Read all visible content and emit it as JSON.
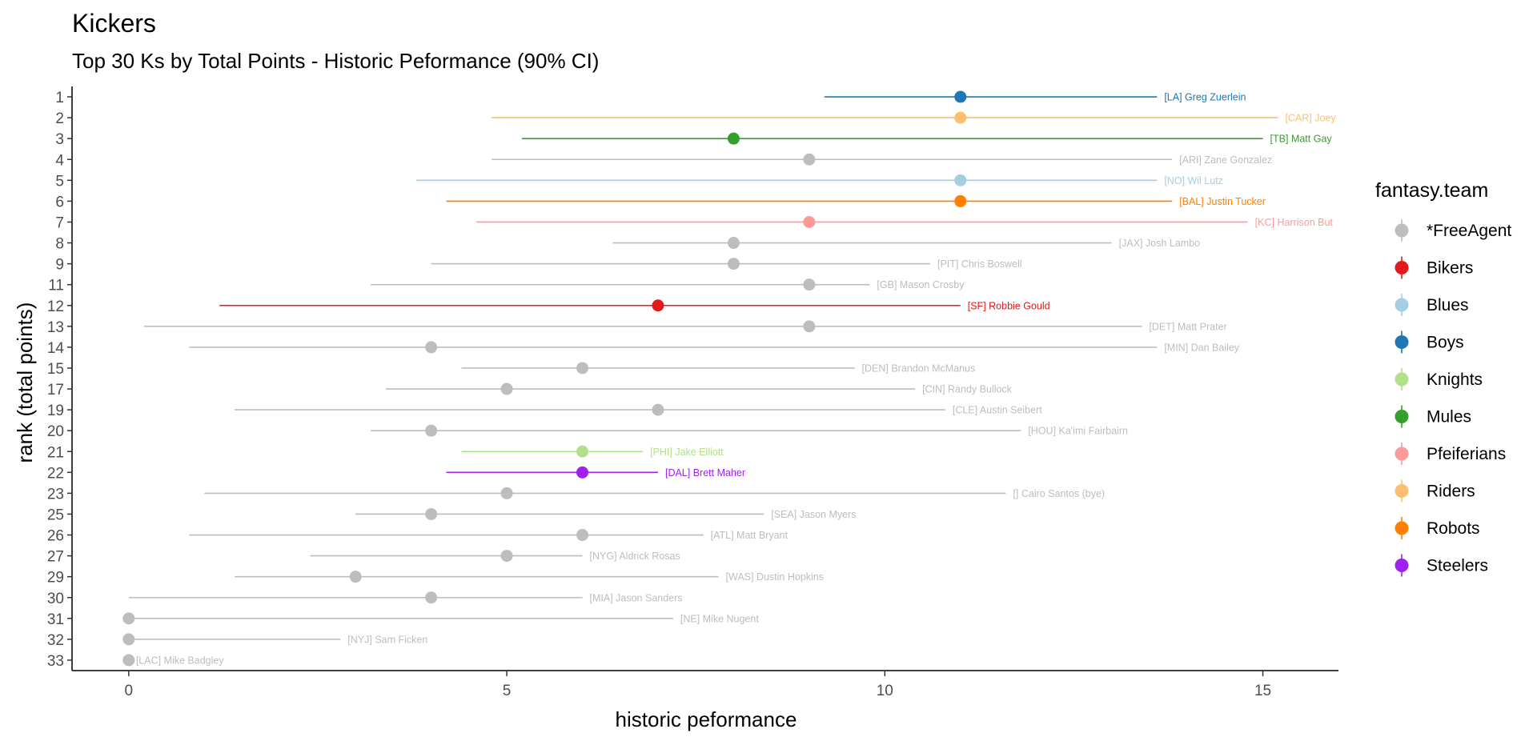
{
  "chart_data": {
    "type": "scatter",
    "title": "Kickers",
    "subtitle": "Top 30 Ks by Total Points - Historic Peformance (90% CI)",
    "xlabel": "historic peformance",
    "ylabel": "rank (total points)",
    "xlim": [
      -0.75,
      16.0
    ],
    "x_ticks": [
      0,
      5,
      10,
      15
    ],
    "y_ticks": [
      "1",
      "2",
      "3",
      "4",
      "5",
      "6",
      "7",
      "8",
      "9",
      "11",
      "12",
      "13",
      "14",
      "15",
      "17",
      "19",
      "20",
      "21",
      "22",
      "23",
      "25",
      "26",
      "27",
      "29",
      "30",
      "31",
      "32",
      "33"
    ],
    "grid": false,
    "legend": {
      "title": "fantasy.team",
      "position": "right",
      "entries": [
        {
          "name": "*FreeAgent",
          "color": "#BDBDBD"
        },
        {
          "name": "Bikers",
          "color": "#E31A1C"
        },
        {
          "name": "Blues",
          "color": "#A6CEE3"
        },
        {
          "name": "Boys",
          "color": "#1F78B4"
        },
        {
          "name": "Knights",
          "color": "#B2DF8A"
        },
        {
          "name": "Mules",
          "color": "#33A02C"
        },
        {
          "name": "Pfeiferians",
          "color": "#FB9A99"
        },
        {
          "name": "Riders",
          "color": "#FDBF6F"
        },
        {
          "name": "Robots",
          "color": "#FF7F00"
        },
        {
          "name": "Steelers",
          "color": "#A020F0"
        }
      ]
    },
    "points": [
      {
        "rank": "1",
        "label": "[LA] Greg Zuerlein",
        "team": "Boys",
        "x": 11,
        "low": 9.2,
        "high": 13.6
      },
      {
        "rank": "2",
        "label": "[CAR] Joey",
        "team": "Riders",
        "x": 11,
        "low": 4.8,
        "high": 15.2
      },
      {
        "rank": "3",
        "label": "[TB] Matt Gay",
        "team": "Mules",
        "x": 8,
        "low": 5.2,
        "high": 15.0
      },
      {
        "rank": "4",
        "label": "[ARI] Zane Gonzalez",
        "team": "*FreeAgent",
        "x": 9,
        "low": 4.8,
        "high": 13.8
      },
      {
        "rank": "5",
        "label": "[NO] Wil Lutz",
        "team": "Blues",
        "x": 11,
        "low": 3.8,
        "high": 13.6
      },
      {
        "rank": "6",
        "label": "[BAL] Justin Tucker",
        "team": "Robots",
        "x": 11,
        "low": 4.2,
        "high": 13.8
      },
      {
        "rank": "7",
        "label": "[KC] Harrison But",
        "team": "Pfeiferians",
        "x": 9,
        "low": 4.6,
        "high": 14.8
      },
      {
        "rank": "8",
        "label": "[JAX] Josh Lambo",
        "team": "*FreeAgent",
        "x": 8,
        "low": 6.4,
        "high": 13.0
      },
      {
        "rank": "9",
        "label": "[PIT] Chris Boswell",
        "team": "*FreeAgent",
        "x": 8,
        "low": 4.0,
        "high": 10.6
      },
      {
        "rank": "11",
        "label": "[GB] Mason Crosby",
        "team": "*FreeAgent",
        "x": 9,
        "low": 3.2,
        "high": 9.8
      },
      {
        "rank": "12",
        "label": "[SF] Robbie Gould",
        "team": "Bikers",
        "x": 7,
        "low": 1.2,
        "high": 11.0
      },
      {
        "rank": "13",
        "label": "[DET] Matt Prater",
        "team": "*FreeAgent",
        "x": 9,
        "low": 0.2,
        "high": 13.4
      },
      {
        "rank": "14",
        "label": "[MIN] Dan Bailey",
        "team": "*FreeAgent",
        "x": 4,
        "low": 0.8,
        "high": 13.6
      },
      {
        "rank": "15",
        "label": "[DEN] Brandon McManus",
        "team": "*FreeAgent",
        "x": 6,
        "low": 4.4,
        "high": 9.6
      },
      {
        "rank": "17",
        "label": "[CIN] Randy Bullock",
        "team": "*FreeAgent",
        "x": 5,
        "low": 3.4,
        "high": 10.4
      },
      {
        "rank": "19",
        "label": "[CLE] Austin Seibert",
        "team": "*FreeAgent",
        "x": 7,
        "low": 1.4,
        "high": 10.8
      },
      {
        "rank": "20",
        "label": "[HOU] Ka'imi Fairbairn",
        "team": "*FreeAgent",
        "x": 4,
        "low": 3.2,
        "high": 11.8
      },
      {
        "rank": "21",
        "label": "[PHI] Jake Elliott",
        "team": "Knights",
        "x": 6,
        "low": 4.4,
        "high": 6.8
      },
      {
        "rank": "22",
        "label": "[DAL] Brett Maher",
        "team": "Steelers",
        "x": 6,
        "low": 4.2,
        "high": 7.0
      },
      {
        "rank": "23",
        "label": "[] Cairo Santos (bye)",
        "team": "*FreeAgent",
        "x": 5,
        "low": 1.0,
        "high": 11.6
      },
      {
        "rank": "25",
        "label": "[SEA] Jason Myers",
        "team": "*FreeAgent",
        "x": 4,
        "low": 3.0,
        "high": 8.4
      },
      {
        "rank": "26",
        "label": "[ATL] Matt Bryant",
        "team": "*FreeAgent",
        "x": 6,
        "low": 0.8,
        "high": 7.6
      },
      {
        "rank": "27",
        "label": "[NYG] Aldrick Rosas",
        "team": "*FreeAgent",
        "x": 5,
        "low": 2.4,
        "high": 6.0
      },
      {
        "rank": "29",
        "label": "[WAS] Dustin Hopkins",
        "team": "*FreeAgent",
        "x": 3,
        "low": 1.4,
        "high": 7.8
      },
      {
        "rank": "30",
        "label": "[MIA] Jason Sanders",
        "team": "*FreeAgent",
        "x": 4,
        "low": 0.0,
        "high": 6.0
      },
      {
        "rank": "31",
        "label": "[NE] Mike Nugent",
        "team": "*FreeAgent",
        "x": 0,
        "low": 0.0,
        "high": 7.2
      },
      {
        "rank": "32",
        "label": "[NYJ] Sam Ficken",
        "team": "*FreeAgent",
        "x": 0,
        "low": 0.0,
        "high": 2.8
      },
      {
        "rank": "33",
        "label": "[LAC] Mike Badgley",
        "team": "*FreeAgent",
        "x": 0,
        "low": 0.0,
        "high": 0.0
      }
    ]
  }
}
